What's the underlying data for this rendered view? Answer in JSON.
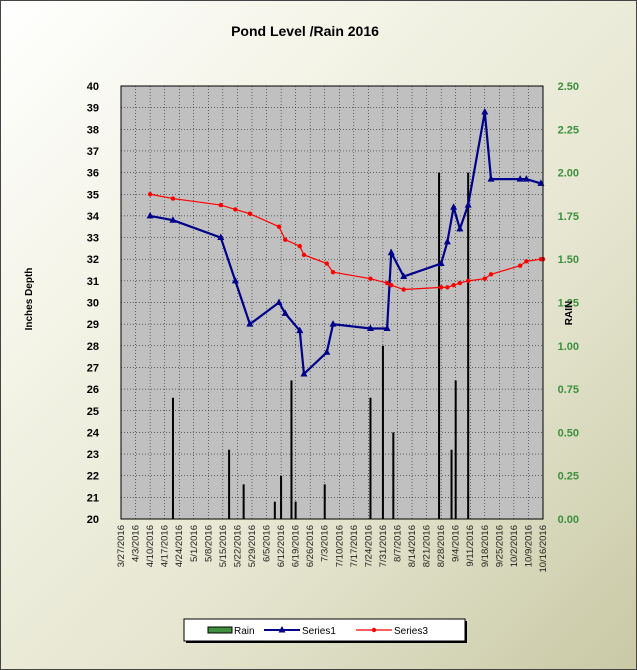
{
  "chart_data": {
    "type": "line",
    "title": "Pond Level /Rain 2016",
    "ylabel": "Inches Depth",
    "y2label": "RAIN",
    "ylim": [
      20,
      40
    ],
    "y2lim": [
      0,
      2.5
    ],
    "yticks": [
      20,
      21,
      22,
      23,
      24,
      25,
      26,
      27,
      28,
      29,
      30,
      31,
      32,
      33,
      34,
      35,
      36,
      37,
      38,
      39,
      40
    ],
    "y2ticks": [
      "0.00",
      "0.25",
      "0.50",
      "0.75",
      "1.00",
      "1.25",
      "1.50",
      "1.75",
      "2.00",
      "2.25",
      "2.50"
    ],
    "xlim": [
      "3/27/2016",
      "10/16/2016"
    ],
    "x_tick_labels": [
      "3/27/2016",
      "4/3/2016",
      "4/10/2016",
      "4/17/2016",
      "4/24/2016",
      "5/1/2016",
      "5/8/2016",
      "5/15/2016",
      "5/22/2016",
      "5/29/2016",
      "6/5/2016",
      "6/12/2016",
      "6/19/2016",
      "6/26/2016",
      "7/3/2016",
      "7/10/2016",
      "7/17/2016",
      "7/24/2016",
      "7/31/2016",
      "8/7/2016",
      "8/14/2016",
      "8/21/2016",
      "8/28/2016",
      "9/4/2016",
      "9/11/2016",
      "9/18/2016",
      "9/25/2016",
      "10/2/2016",
      "10/9/2016",
      "10/16/2016"
    ],
    "grid": true,
    "legend_position": "bottom",
    "series": [
      {
        "name": "Rain",
        "type": "bar",
        "axis": "right",
        "color": "#000000",
        "legend_color": "#3f8f3f",
        "x": [
          "4/21/2016",
          "5/18/2016",
          "5/25/2016",
          "6/9/2016",
          "6/12/2016",
          "6/17/2016",
          "6/19/2016",
          "7/3/2016",
          "7/25/2016",
          "7/31/2016",
          "8/5/2016",
          "8/27/2016",
          "9/2/2016",
          "9/4/2016",
          "9/10/2016"
        ],
        "values": [
          0.7,
          0.4,
          0.2,
          0.1,
          0.25,
          0.8,
          0.1,
          0.2,
          0.7,
          1.0,
          0.5,
          2.0,
          0.4,
          0.8,
          2.0
        ]
      },
      {
        "name": "Series1",
        "type": "line",
        "axis": "left",
        "color": "#00008b",
        "marker": "triangle",
        "x": [
          "4/10/2016",
          "4/21/2016",
          "5/14/2016",
          "5/21/2016",
          "5/28/2016",
          "6/11/2016",
          "6/14/2016",
          "6/21/2016",
          "6/23/2016",
          "7/4/2016",
          "7/7/2016",
          "7/25/2016",
          "8/2/2016",
          "8/4/2016",
          "8/10/2016",
          "8/28/2016",
          "8/31/2016",
          "9/3/2016",
          "9/6/2016",
          "9/10/2016",
          "9/18/2016",
          "9/21/2016",
          "10/5/2016",
          "10/8/2016",
          "10/15/2016"
        ],
        "values": [
          34.0,
          33.8,
          33.0,
          31.0,
          29.0,
          30.0,
          29.5,
          28.7,
          26.7,
          27.7,
          29.0,
          28.8,
          28.8,
          32.3,
          31.2,
          31.8,
          32.8,
          34.4,
          33.4,
          34.5,
          38.8,
          35.7,
          35.7,
          35.7,
          35.5
        ]
      },
      {
        "name": "Series3",
        "type": "line",
        "axis": "left",
        "color": "#ff0000",
        "marker": "dot",
        "x": [
          "4/10/2016",
          "4/21/2016",
          "5/14/2016",
          "5/21/2016",
          "5/28/2016",
          "6/11/2016",
          "6/14/2016",
          "6/21/2016",
          "6/23/2016",
          "7/4/2016",
          "7/7/2016",
          "7/25/2016",
          "8/2/2016",
          "8/4/2016",
          "8/10/2016",
          "8/28/2016",
          "8/31/2016",
          "9/3/2016",
          "9/6/2016",
          "9/10/2016",
          "9/18/2016",
          "9/21/2016",
          "10/5/2016",
          "10/8/2016",
          "10/15/2016",
          "10/16/2016"
        ],
        "values": [
          35.0,
          34.8,
          34.5,
          34.3,
          34.1,
          33.5,
          32.9,
          32.6,
          32.2,
          31.8,
          31.4,
          31.1,
          30.9,
          30.8,
          30.6,
          30.7,
          30.7,
          30.8,
          30.9,
          31.0,
          31.1,
          31.3,
          31.7,
          31.9,
          32.0,
          32.0
        ]
      }
    ],
    "legend": [
      {
        "label": "Rain",
        "swatch": "bar"
      },
      {
        "label": "Series1",
        "swatch": "triangle-line"
      },
      {
        "label": "Series3",
        "swatch": "dot-line"
      }
    ]
  }
}
